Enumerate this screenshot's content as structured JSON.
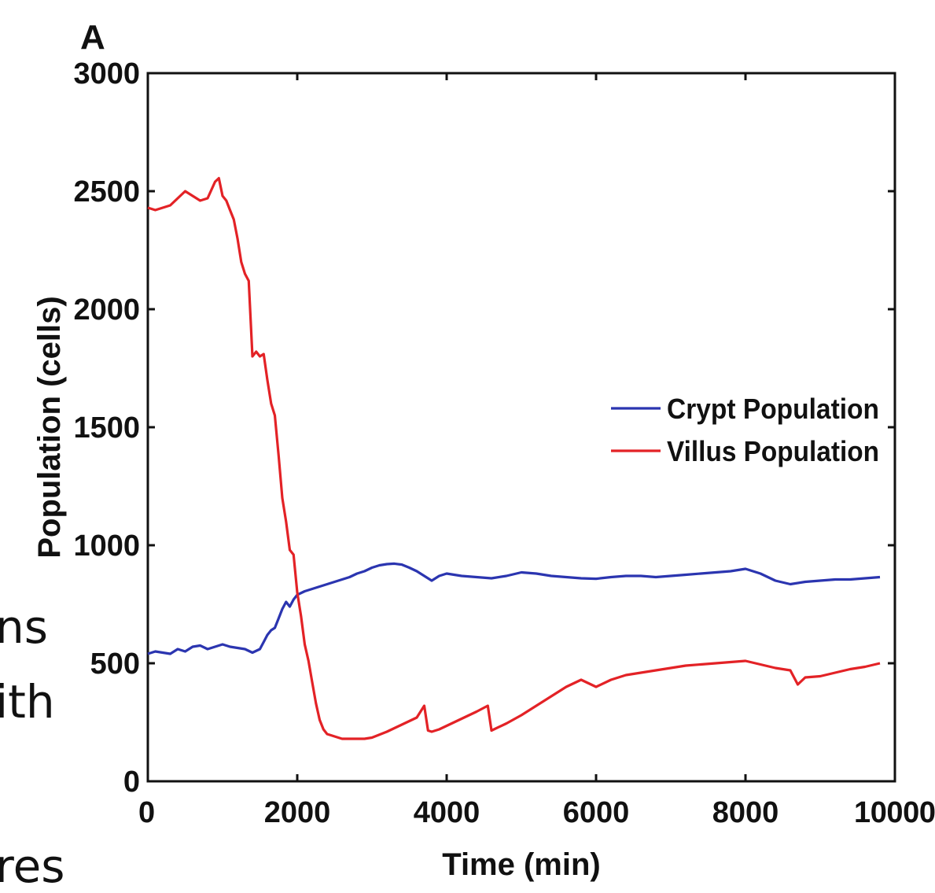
{
  "background_text": {
    "line1": "ns",
    "line2": "ith",
    "line3": "res"
  },
  "chart_data": {
    "type": "line",
    "panel_label": "A",
    "title": "",
    "xlabel": "Time (min)",
    "ylabel": "Population (cells)",
    "xlim": [
      0,
      10000
    ],
    "ylim": [
      0,
      3000
    ],
    "xticks": [
      0,
      2000,
      4000,
      6000,
      8000,
      10000
    ],
    "yticks": [
      0,
      500,
      1000,
      1500,
      2000,
      2500,
      3000
    ],
    "legend_position": "center-right",
    "grid": false,
    "series": [
      {
        "name": "Crypt Population",
        "color": "#2b35b0",
        "x": [
          0,
          100,
          200,
          300,
          400,
          500,
          600,
          700,
          800,
          900,
          1000,
          1100,
          1200,
          1300,
          1400,
          1500,
          1550,
          1600,
          1650,
          1700,
          1750,
          1800,
          1850,
          1900,
          1950,
          2000,
          2100,
          2200,
          2300,
          2400,
          2500,
          2600,
          2700,
          2800,
          2900,
          3000,
          3100,
          3200,
          3300,
          3400,
          3500,
          3600,
          3700,
          3800,
          3900,
          4000,
          4200,
          4400,
          4600,
          4800,
          5000,
          5200,
          5400,
          5600,
          5800,
          6000,
          6200,
          6400,
          6600,
          6800,
          7000,
          7200,
          7400,
          7600,
          7800,
          8000,
          8200,
          8400,
          8600,
          8800,
          9000,
          9200,
          9400,
          9600,
          9800
        ],
        "y": [
          540,
          550,
          545,
          540,
          560,
          550,
          570,
          575,
          560,
          570,
          580,
          570,
          565,
          560,
          545,
          560,
          590,
          620,
          640,
          650,
          690,
          730,
          760,
          740,
          770,
          790,
          805,
          815,
          825,
          835,
          845,
          855,
          865,
          880,
          890,
          905,
          915,
          920,
          922,
          918,
          905,
          890,
          870,
          850,
          870,
          880,
          870,
          865,
          860,
          870,
          885,
          880,
          870,
          865,
          860,
          858,
          865,
          870,
          870,
          865,
          870,
          875,
          880,
          885,
          890,
          900,
          880,
          850,
          835,
          845,
          850,
          855,
          855,
          860,
          865
        ]
      },
      {
        "name": "Villus Population",
        "color": "#e32226",
        "x": [
          0,
          100,
          200,
          300,
          400,
          500,
          600,
          700,
          800,
          900,
          950,
          1000,
          1050,
          1100,
          1150,
          1200,
          1250,
          1300,
          1350,
          1400,
          1450,
          1500,
          1550,
          1600,
          1650,
          1700,
          1750,
          1800,
          1850,
          1900,
          1950,
          2000,
          2050,
          2100,
          2150,
          2200,
          2250,
          2300,
          2350,
          2400,
          2450,
          2500,
          2600,
          2700,
          2800,
          2900,
          3000,
          3200,
          3400,
          3600,
          3700,
          3750,
          3800,
          3900,
          4000,
          4200,
          4400,
          4550,
          4600,
          4800,
          5000,
          5200,
          5400,
          5600,
          5800,
          6000,
          6200,
          6400,
          6600,
          6800,
          7000,
          7200,
          7400,
          7600,
          7800,
          8000,
          8200,
          8400,
          8600,
          8700,
          8800,
          9000,
          9200,
          9400,
          9600,
          9800
        ],
        "y": [
          2430,
          2420,
          2430,
          2440,
          2470,
          2500,
          2480,
          2460,
          2470,
          2540,
          2555,
          2480,
          2460,
          2420,
          2380,
          2300,
          2200,
          2150,
          2120,
          1800,
          1820,
          1800,
          1810,
          1700,
          1600,
          1550,
          1380,
          1200,
          1100,
          980,
          960,
          800,
          700,
          580,
          510,
          420,
          330,
          260,
          220,
          200,
          195,
          190,
          180,
          180,
          180,
          180,
          185,
          210,
          240,
          270,
          320,
          215,
          210,
          220,
          235,
          265,
          295,
          320,
          215,
          245,
          280,
          320,
          360,
          400,
          430,
          400,
          430,
          450,
          460,
          470,
          480,
          490,
          495,
          500,
          505,
          510,
          495,
          480,
          470,
          410,
          440,
          445,
          460,
          475,
          485,
          500
        ]
      }
    ]
  }
}
